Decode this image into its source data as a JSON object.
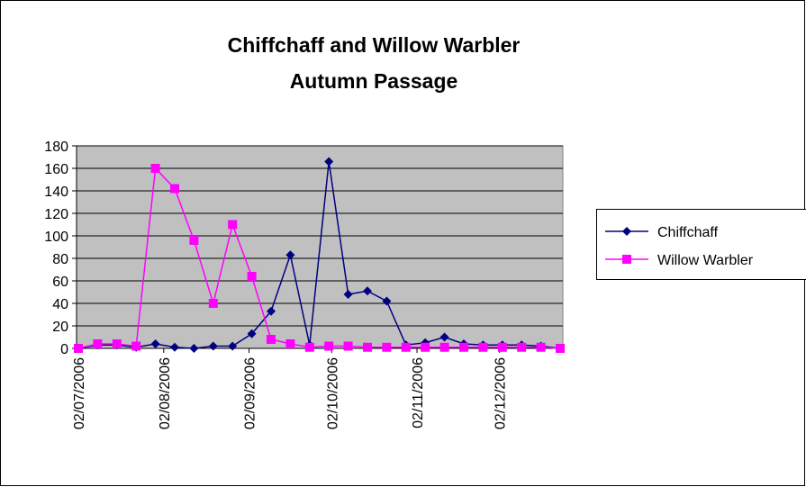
{
  "chart_data": {
    "type": "line",
    "title": [
      "Chiffchaff and Willow Warbler",
      "Autumn Passage"
    ],
    "x": [
      "2006-07-02",
      "2006-07-09",
      "2006-07-16",
      "2006-07-23",
      "2006-07-30",
      "2006-08-06",
      "2006-08-13",
      "2006-08-20",
      "2006-08-27",
      "2006-09-03",
      "2006-09-10",
      "2006-09-17",
      "2006-09-24",
      "2006-10-01",
      "2006-10-08",
      "2006-10-15",
      "2006-10-22",
      "2006-10-29",
      "2006-11-05",
      "2006-11-12",
      "2006-11-19",
      "2006-11-26",
      "2006-12-03",
      "2006-12-10",
      "2006-12-17",
      "2006-12-24"
    ],
    "series": [
      {
        "name": "Chiffchaff",
        "color": "#000080",
        "marker": "diamond",
        "values": [
          0,
          3,
          3,
          1,
          4,
          1,
          0,
          2,
          2,
          13,
          33,
          83,
          3,
          166,
          48,
          51,
          42,
          3,
          5,
          10,
          4,
          3,
          3,
          3,
          2,
          0
        ]
      },
      {
        "name": "Willow Warbler",
        "color": "#ff00ff",
        "marker": "square",
        "values": [
          0,
          4,
          4,
          2,
          160,
          142,
          96,
          40,
          110,
          64,
          8,
          4,
          1,
          2,
          2,
          1,
          1,
          1,
          1,
          1,
          1,
          1,
          1,
          1,
          1,
          0
        ]
      }
    ],
    "xlim": [
      "2006-07-02",
      "2006-12-24"
    ],
    "xticks": [
      {
        "value": "2006-07-02",
        "label": "02/07/2006"
      },
      {
        "value": "2006-08-02",
        "label": "02/08/2006"
      },
      {
        "value": "2006-09-02",
        "label": "02/09/2006"
      },
      {
        "value": "2006-10-02",
        "label": "02/10/2006"
      },
      {
        "value": "2006-11-02",
        "label": "02/11/2006"
      },
      {
        "value": "2006-12-02",
        "label": "02/12/2006"
      }
    ],
    "ylim": [
      0,
      180
    ],
    "yticks": [
      0,
      20,
      40,
      60,
      80,
      100,
      120,
      140,
      160,
      180
    ],
    "grid": true,
    "legend": "right"
  }
}
